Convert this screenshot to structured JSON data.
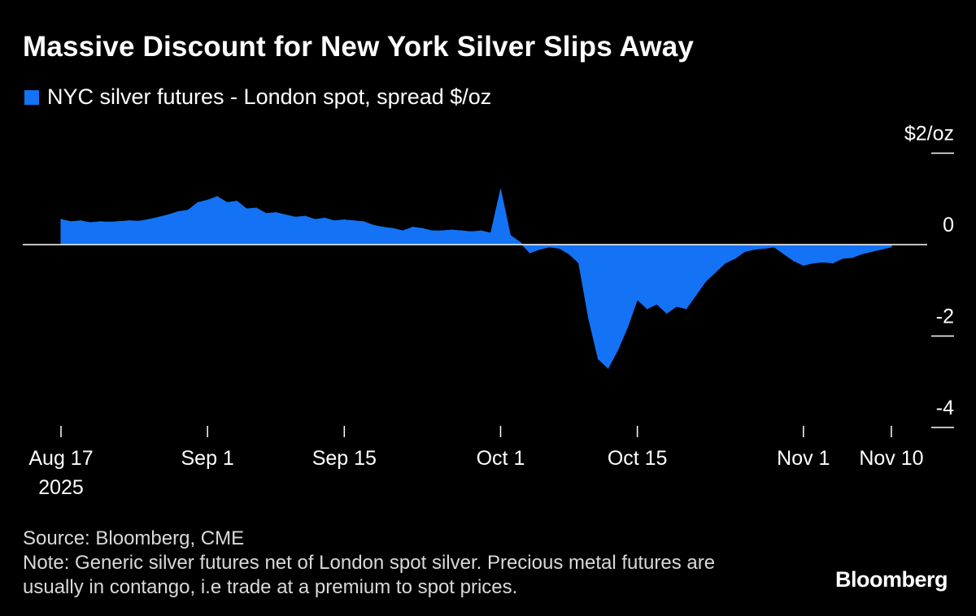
{
  "title": "Massive Discount for New York Silver Slips Away",
  "legend_label": "NYC silver futures - London spot, spread $/oz",
  "y_unit_label": "$2/oz",
  "source": "Source: Bloomberg, CME",
  "note": "Note: Generic silver futures net of London spot silver. Precious metal futures are usually in contango, i.e trade at a premium to spot prices.",
  "logo": "Bloomberg",
  "colors": {
    "series": "#1473f5",
    "background": "#000000",
    "axis": "#ffffff"
  },
  "chart_data": {
    "type": "area",
    "title": "Massive Discount for New York Silver Slips Away",
    "ylabel": "$/oz",
    "ylim": [
      -4.2,
      2.2
    ],
    "yticks": [
      {
        "value": 2,
        "label": "$2/oz"
      },
      {
        "value": 0,
        "label": "0"
      },
      {
        "value": -2,
        "label": "-2"
      },
      {
        "value": -4,
        "label": "-4"
      }
    ],
    "xlim": [
      "2025-08-17",
      "2025-11-17"
    ],
    "xticks": [
      {
        "date": "2025-08-17",
        "label": "Aug 17",
        "sublabel": "2025"
      },
      {
        "date": "2025-09-01",
        "label": "Sep 1"
      },
      {
        "date": "2025-09-15",
        "label": "Sep 15"
      },
      {
        "date": "2025-10-01",
        "label": "Oct 1"
      },
      {
        "date": "2025-10-15",
        "label": "Oct 15"
      },
      {
        "date": "2025-11-01",
        "label": "Nov 1"
      },
      {
        "date": "2025-11-10",
        "label": "Nov 10"
      }
    ],
    "series": [
      {
        "name": "NYC silver futures - London spot, spread $/oz",
        "points": [
          [
            "2025-08-17",
            0.55
          ],
          [
            "2025-08-18",
            0.5
          ],
          [
            "2025-08-19",
            0.52
          ],
          [
            "2025-08-20",
            0.48
          ],
          [
            "2025-08-21",
            0.5
          ],
          [
            "2025-08-22",
            0.49
          ],
          [
            "2025-08-24",
            0.52
          ],
          [
            "2025-08-25",
            0.51
          ],
          [
            "2025-08-26",
            0.55
          ],
          [
            "2025-08-27",
            0.6
          ],
          [
            "2025-08-28",
            0.65
          ],
          [
            "2025-08-29",
            0.72
          ],
          [
            "2025-08-30",
            0.75
          ],
          [
            "2025-08-31",
            0.92
          ],
          [
            "2025-09-01",
            0.97
          ],
          [
            "2025-09-02",
            1.05
          ],
          [
            "2025-09-03",
            0.92
          ],
          [
            "2025-09-04",
            0.95
          ],
          [
            "2025-09-05",
            0.78
          ],
          [
            "2025-09-06",
            0.8
          ],
          [
            "2025-09-07",
            0.68
          ],
          [
            "2025-09-08",
            0.7
          ],
          [
            "2025-09-10",
            0.6
          ],
          [
            "2025-09-11",
            0.62
          ],
          [
            "2025-09-12",
            0.55
          ],
          [
            "2025-09-13",
            0.58
          ],
          [
            "2025-09-14",
            0.52
          ],
          [
            "2025-09-15",
            0.54
          ],
          [
            "2025-09-16",
            0.52
          ],
          [
            "2025-09-17",
            0.5
          ],
          [
            "2025-09-18",
            0.42
          ],
          [
            "2025-09-19",
            0.38
          ],
          [
            "2025-09-20",
            0.35
          ],
          [
            "2025-09-21",
            0.3
          ],
          [
            "2025-09-22",
            0.38
          ],
          [
            "2025-09-23",
            0.35
          ],
          [
            "2025-09-24",
            0.3
          ],
          [
            "2025-09-25",
            0.3
          ],
          [
            "2025-09-26",
            0.32
          ],
          [
            "2025-09-27",
            0.3
          ],
          [
            "2025-09-28",
            0.28
          ],
          [
            "2025-09-29",
            0.3
          ],
          [
            "2025-09-30",
            0.25
          ],
          [
            "2025-10-01",
            1.2
          ],
          [
            "2025-10-02",
            0.2
          ],
          [
            "2025-10-03",
            0.05
          ],
          [
            "2025-10-04",
            -0.18
          ],
          [
            "2025-10-05",
            -0.1
          ],
          [
            "2025-10-06",
            -0.05
          ],
          [
            "2025-10-07",
            -0.08
          ],
          [
            "2025-10-08",
            -0.2
          ],
          [
            "2025-10-09",
            -0.4
          ],
          [
            "2025-10-10",
            -1.6
          ],
          [
            "2025-10-11",
            -2.5
          ],
          [
            "2025-10-12",
            -2.7
          ],
          [
            "2025-10-13",
            -2.3
          ],
          [
            "2025-10-14",
            -1.8
          ],
          [
            "2025-10-15",
            -1.2
          ],
          [
            "2025-10-16",
            -1.4
          ],
          [
            "2025-10-17",
            -1.3
          ],
          [
            "2025-10-18",
            -1.5
          ],
          [
            "2025-10-19",
            -1.35
          ],
          [
            "2025-10-20",
            -1.4
          ],
          [
            "2025-10-21",
            -1.1
          ],
          [
            "2025-10-22",
            -0.8
          ],
          [
            "2025-10-23",
            -0.6
          ],
          [
            "2025-10-24",
            -0.4
          ],
          [
            "2025-10-25",
            -0.3
          ],
          [
            "2025-10-26",
            -0.15
          ],
          [
            "2025-10-27",
            -0.1
          ],
          [
            "2025-10-28",
            -0.08
          ],
          [
            "2025-10-29",
            -0.05
          ],
          [
            "2025-10-30",
            -0.2
          ],
          [
            "2025-10-31",
            -0.35
          ],
          [
            "2025-11-01",
            -0.45
          ],
          [
            "2025-11-02",
            -0.4
          ],
          [
            "2025-11-03",
            -0.38
          ],
          [
            "2025-11-04",
            -0.4
          ],
          [
            "2025-11-05",
            -0.3
          ],
          [
            "2025-11-06",
            -0.28
          ],
          [
            "2025-11-07",
            -0.2
          ],
          [
            "2025-11-08",
            -0.15
          ],
          [
            "2025-11-09",
            -0.1
          ],
          [
            "2025-11-10",
            -0.05
          ]
        ]
      }
    ]
  }
}
